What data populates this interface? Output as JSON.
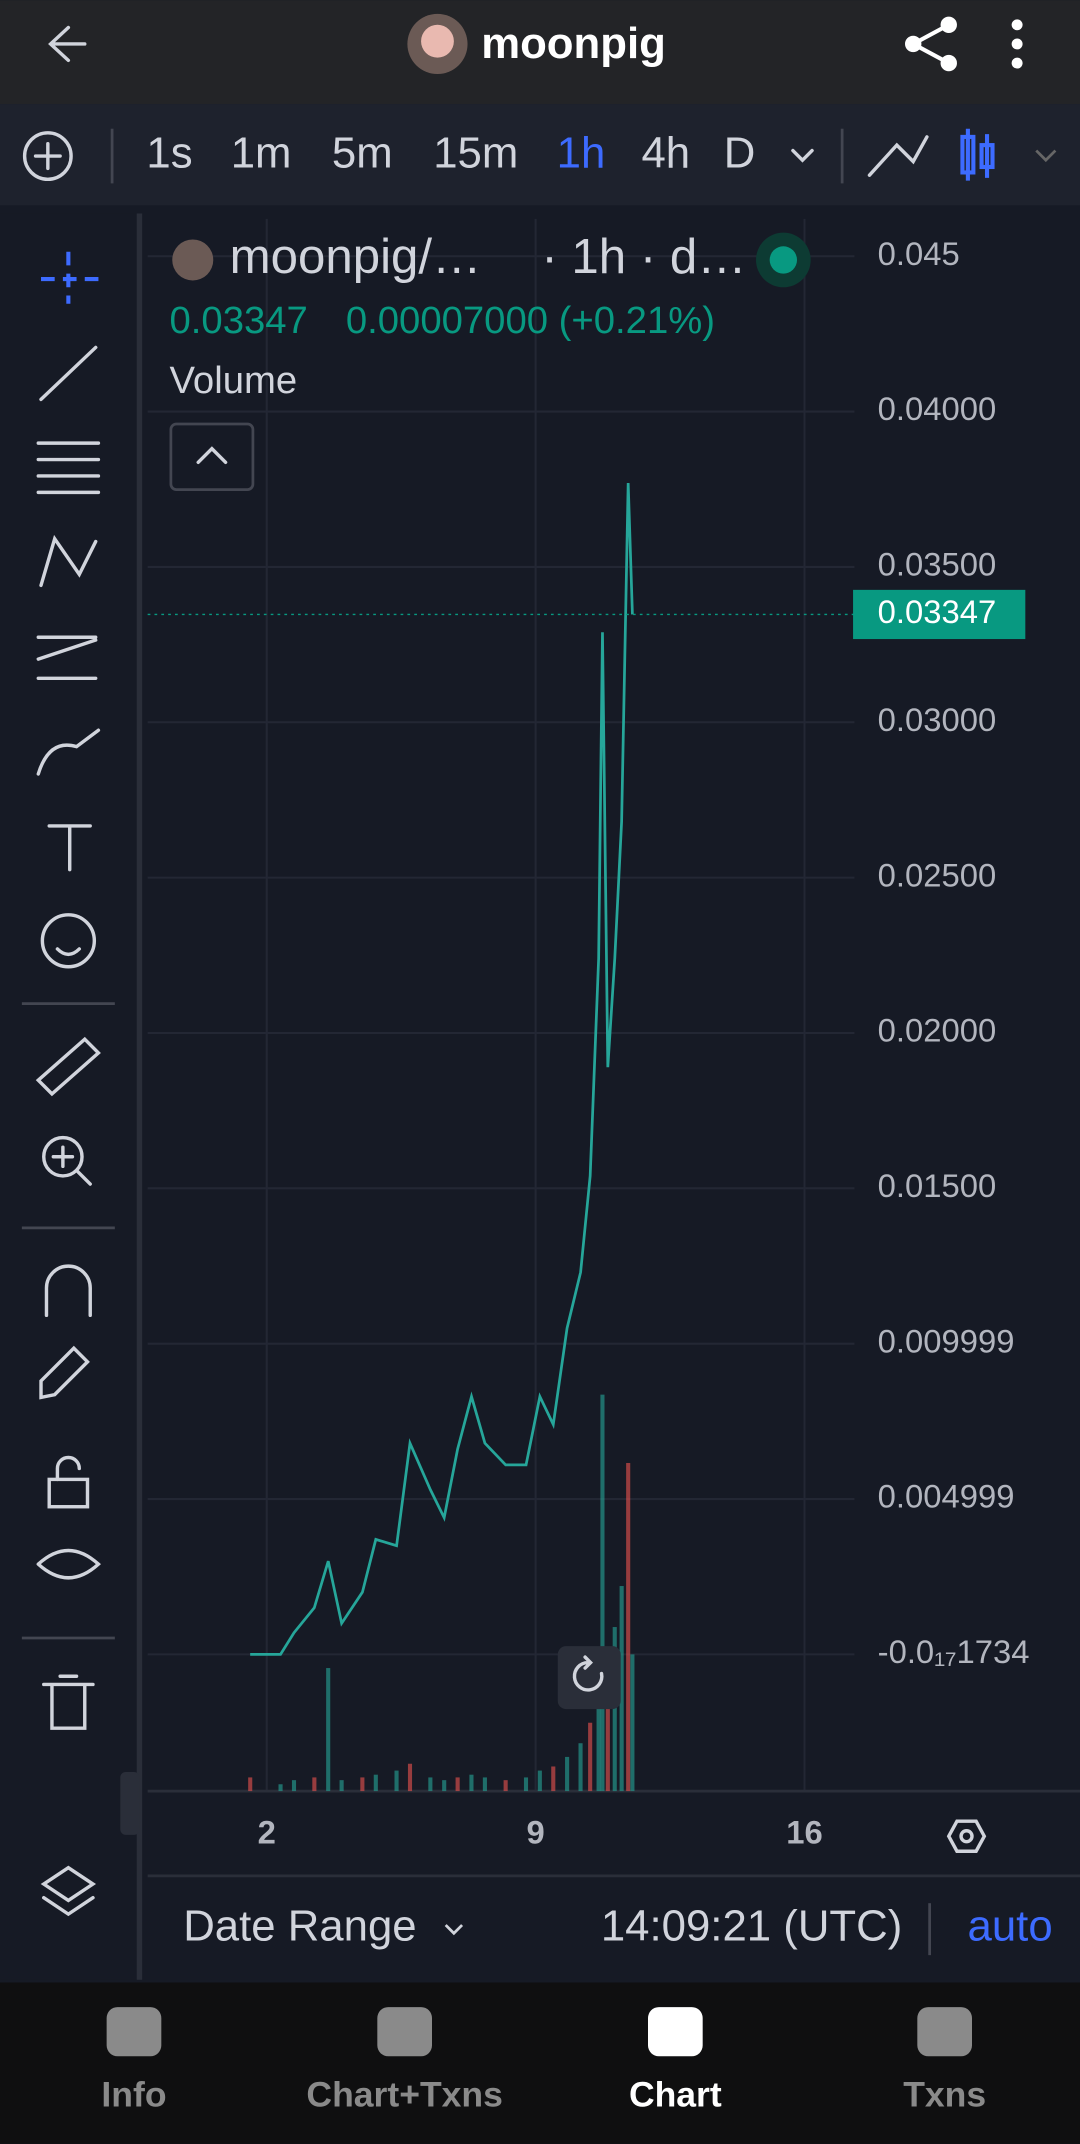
{
  "header": {
    "title": "moonpig"
  },
  "toolbar": {
    "intervals": [
      "1s",
      "1m",
      "5m",
      "15m",
      "1h",
      "4h",
      "D"
    ],
    "active": 4
  },
  "chart_data": {
    "type": "line",
    "legend_suffix": "· 1h · d…",
    "change": "0.00007000 (+0.21%)",
    "last_price": 0.03347,
    "x": [
      1.57,
      2.36,
      2.71,
      3.24,
      3.6,
      3.95,
      4.49,
      4.84,
      5.38,
      5.73,
      6.26,
      6.62,
      6.97,
      7.33,
      7.68,
      8.22,
      8.75,
      9.11,
      9.46,
      9.82,
      10.17,
      10.42,
      10.64,
      10.74,
      10.88,
      11.06,
      11.24,
      11.41,
      11.52
    ],
    "series": [
      {
        "name": "moonpig/…",
        "color": "#26a69a",
        "values": [
          0.0,
          0.0,
          0.0007,
          0.0015,
          0.003,
          0.001,
          0.002,
          0.0037,
          0.0035,
          0.0068,
          0.0053,
          0.0044,
          0.0066,
          0.0083,
          0.0068,
          0.0061,
          0.0061,
          0.0083,
          0.0074,
          0.0105,
          0.0123,
          0.0154,
          0.0224,
          0.0329,
          0.0189,
          0.0224,
          0.0268,
          0.0377,
          0.03347
        ]
      },
      {
        "name": "Volume",
        "color": "#26a69a",
        "values": [
          10,
          5,
          8,
          10,
          90,
          8,
          10,
          12,
          15,
          20,
          10,
          8,
          10,
          12,
          10,
          8,
          10,
          15,
          18,
          25,
          35,
          50,
          80,
          290,
          100,
          120,
          150,
          240,
          100
        ]
      }
    ],
    "xlim": [
      -1.1,
      17.3
    ],
    "xticks": [
      2,
      9,
      16
    ],
    "ylim": [
      -0.0044,
      0.0462
    ],
    "yticks": [
      0.045,
      {
        "value": 0.04,
        "label": "0.04000"
      },
      {
        "value": 0.035,
        "label": "0.03500"
      },
      {
        "value": 0.03,
        "label": "0.03000"
      },
      {
        "value": 0.025,
        "label": "0.02500"
      },
      {
        "value": 0.02,
        "label": "0.02000"
      },
      {
        "value": 0.015,
        "label": "0.01500"
      },
      0.009999,
      0.004999,
      {
        "value": -1.734e-18,
        "label": "-0.0₁₇1734"
      }
    ],
    "grid": true
  },
  "footer": {
    "range": "Date Range",
    "time": "14:09:21 (UTC)",
    "mode": "auto"
  },
  "nav": {
    "tabs": [
      "Info",
      "Chart+Txns",
      "Chart",
      "Txns"
    ],
    "active": 2
  }
}
